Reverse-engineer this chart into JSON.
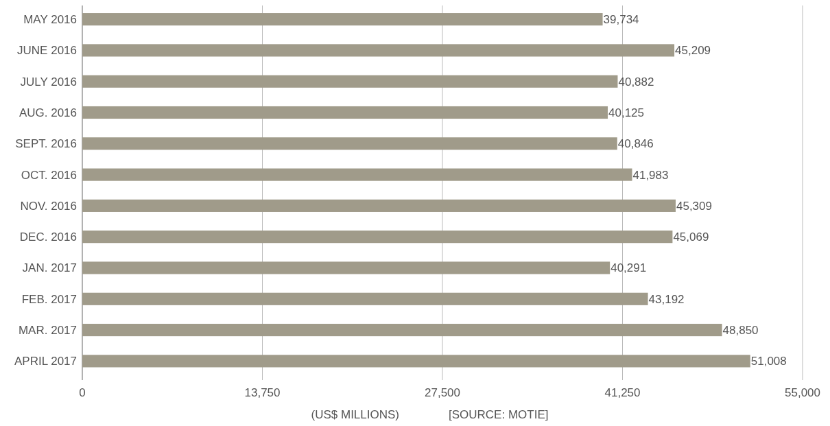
{
  "chart_data": {
    "type": "bar",
    "orientation": "horizontal",
    "xlabel": "(US$ MILLIONS)",
    "annotations": [
      "[SOURCE: MOTIE]"
    ],
    "categories": [
      "MAY 2016",
      "JUNE 2016",
      "JULY 2016",
      "AUG. 2016",
      "SEPT. 2016",
      "OCT. 2016",
      "NOV. 2016",
      "DEC. 2016",
      "JAN. 2017",
      "FEB. 2017",
      "MAR. 2017",
      "APRIL 2017"
    ],
    "values": [
      39734,
      45209,
      40882,
      40125,
      40846,
      41983,
      45309,
      45069,
      40291,
      43192,
      48850,
      51008
    ],
    "value_labels": [
      "39,734",
      "45,209",
      "40,882",
      "40,125",
      "40,846",
      "41,983",
      "45,309",
      "45,069",
      "40,291",
      "43,192",
      "48,850",
      "51,008"
    ],
    "color": "#a09b8a",
    "grid": "x",
    "xlim": [
      0,
      55000
    ],
    "xticks": [
      {
        "value": 0,
        "label": "0"
      },
      {
        "value": 13750,
        "label": "13,750"
      },
      {
        "value": 27500,
        "label": "27,500"
      },
      {
        "value": 41250,
        "label": "41,250"
      },
      {
        "value": 55000,
        "label": "55,000"
      }
    ]
  }
}
